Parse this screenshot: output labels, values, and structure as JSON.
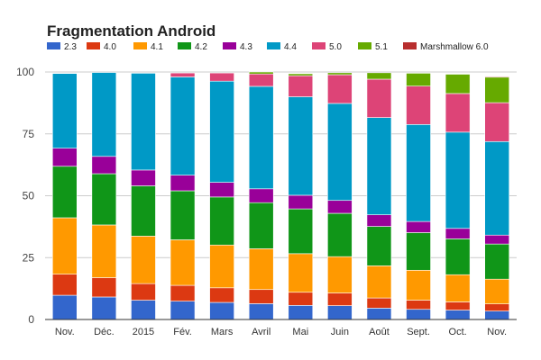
{
  "chart_data": {
    "type": "bar",
    "stacked": true,
    "title": "Fragmentation Android",
    "xlabel": "",
    "ylabel": "",
    "ylim": [
      0,
      100
    ],
    "yticks": [
      "0",
      "25",
      "50",
      "75",
      "100"
    ],
    "grid": true,
    "legend_position": "top-left",
    "categories": [
      "Nov.",
      "Déc.",
      "2015",
      "Fév.",
      "Mars",
      "Avril",
      "Mai",
      "Juin",
      "Août",
      "Sept.",
      "Oct.",
      "Nov."
    ],
    "series": [
      {
        "name": "2.3",
        "color": "#3366cc",
        "values": [
          9.8,
          9.1,
          7.8,
          7.4,
          6.9,
          6.4,
          5.7,
          5.6,
          4.6,
          4.1,
          3.8,
          3.4
        ]
      },
      {
        "name": "4.0",
        "color": "#dc3912",
        "values": [
          8.5,
          7.8,
          6.7,
          6.4,
          5.9,
          5.7,
          5.3,
          5.1,
          4.1,
          3.7,
          3.3,
          2.9
        ]
      },
      {
        "name": "4.1",
        "color": "#ff9900",
        "values": [
          22.8,
          21.3,
          19.2,
          18.4,
          17.3,
          16.5,
          15.6,
          14.7,
          13.0,
          12.1,
          11.0,
          10.0
        ]
      },
      {
        "name": "4.2",
        "color": "#109618",
        "values": [
          20.8,
          20.7,
          20.3,
          19.8,
          19.4,
          18.6,
          18.1,
          17.5,
          15.9,
          15.2,
          14.5,
          14.2
        ]
      },
      {
        "name": "4.3",
        "color": "#990099",
        "values": [
          7.3,
          7.0,
          6.4,
          6.3,
          5.9,
          5.6,
          5.5,
          5.2,
          4.7,
          4.5,
          4.2,
          3.6
        ]
      },
      {
        "name": "4.4",
        "color": "#0099c6",
        "values": [
          30.2,
          33.9,
          39.1,
          39.7,
          40.9,
          41.4,
          39.8,
          39.2,
          39.3,
          39.2,
          38.9,
          37.8
        ]
      },
      {
        "name": "5.0",
        "color": "#dd4477",
        "values": [
          0,
          0,
          0,
          1.6,
          3.3,
          5.0,
          8.5,
          11.6,
          15.5,
          15.5,
          15.6,
          15.7
        ]
      },
      {
        "name": "5.1",
        "color": "#66aa00",
        "values": [
          0,
          0,
          0,
          0,
          0,
          0.8,
          0.8,
          0.8,
          2.6,
          5.2,
          7.8,
          10.3
        ]
      },
      {
        "name": "Marshmallow 6.0",
        "color": "#b82e2e",
        "values": [
          0,
          0,
          0,
          0,
          0,
          0,
          0,
          0,
          0,
          0,
          0,
          0.3
        ]
      }
    ]
  }
}
